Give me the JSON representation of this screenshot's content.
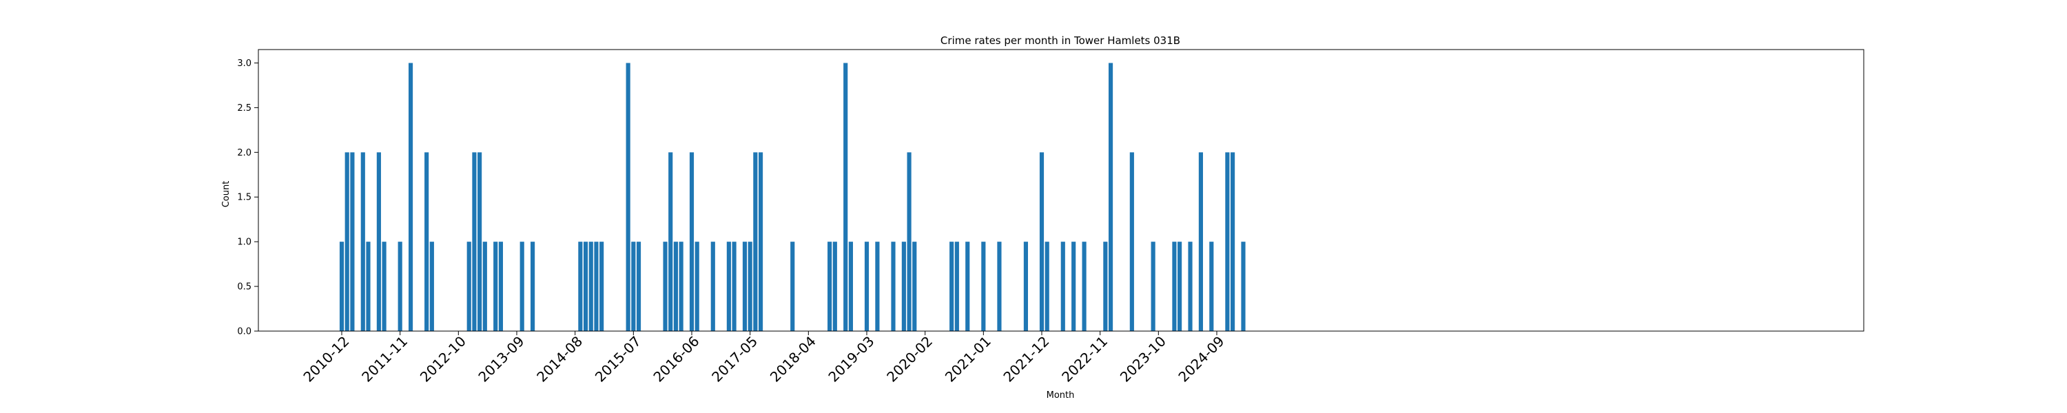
{
  "chart_data": {
    "type": "bar",
    "title": "Crime rates per month in Tower Hamlets 031B",
    "xlabel": "Month",
    "ylabel": "Count",
    "ylim": [
      0,
      3.15
    ],
    "yticks": [
      "0.0",
      "0.5",
      "1.0",
      "1.5",
      "2.0",
      "2.5",
      "3.0"
    ],
    "xtick_labels": [
      "2010-12",
      "2011-11",
      "2012-10",
      "2013-09",
      "2014-08",
      "2015-07",
      "2016-06",
      "2017-05",
      "2018-04",
      "2019-03",
      "2020-02",
      "2021-01",
      "2021-12",
      "2022-11",
      "2023-10",
      "2024-09"
    ],
    "grid": false,
    "bar_color": "#1f77b4",
    "bars": [
      {
        "x": "2010-12",
        "y": 1
      },
      {
        "x": "2011-01",
        "y": 2
      },
      {
        "x": "2011-02",
        "y": 2
      },
      {
        "x": "2011-04",
        "y": 2
      },
      {
        "x": "2011-05",
        "y": 1
      },
      {
        "x": "2011-07",
        "y": 2
      },
      {
        "x": "2011-08",
        "y": 1
      },
      {
        "x": "2011-11",
        "y": 1
      },
      {
        "x": "2012-01",
        "y": 3
      },
      {
        "x": "2012-04",
        "y": 2
      },
      {
        "x": "2012-05",
        "y": 1
      },
      {
        "x": "2012-12",
        "y": 1
      },
      {
        "x": "2013-01",
        "y": 2
      },
      {
        "x": "2013-02",
        "y": 2
      },
      {
        "x": "2013-03",
        "y": 1
      },
      {
        "x": "2013-05",
        "y": 1
      },
      {
        "x": "2013-06",
        "y": 1
      },
      {
        "x": "2013-10",
        "y": 1
      },
      {
        "x": "2013-12",
        "y": 1
      },
      {
        "x": "2014-09",
        "y": 1
      },
      {
        "x": "2014-10",
        "y": 1
      },
      {
        "x": "2014-11",
        "y": 1
      },
      {
        "x": "2014-12",
        "y": 1
      },
      {
        "x": "2015-01",
        "y": 1
      },
      {
        "x": "2015-06",
        "y": 3
      },
      {
        "x": "2015-07",
        "y": 1
      },
      {
        "x": "2015-08",
        "y": 1
      },
      {
        "x": "2016-01",
        "y": 1
      },
      {
        "x": "2016-02",
        "y": 2
      },
      {
        "x": "2016-03",
        "y": 1
      },
      {
        "x": "2016-04",
        "y": 1
      },
      {
        "x": "2016-06",
        "y": 2
      },
      {
        "x": "2016-07",
        "y": 1
      },
      {
        "x": "2016-10",
        "y": 1
      },
      {
        "x": "2017-01",
        "y": 1
      },
      {
        "x": "2017-02",
        "y": 1
      },
      {
        "x": "2017-04",
        "y": 1
      },
      {
        "x": "2017-05",
        "y": 1
      },
      {
        "x": "2017-06",
        "y": 2
      },
      {
        "x": "2017-07",
        "y": 2
      },
      {
        "x": "2018-01",
        "y": 1
      },
      {
        "x": "2018-08",
        "y": 1
      },
      {
        "x": "2018-09",
        "y": 1
      },
      {
        "x": "2018-11",
        "y": 3
      },
      {
        "x": "2018-12",
        "y": 1
      },
      {
        "x": "2019-03",
        "y": 1
      },
      {
        "x": "2019-05",
        "y": 1
      },
      {
        "x": "2019-08",
        "y": 1
      },
      {
        "x": "2019-10",
        "y": 1
      },
      {
        "x": "2019-11",
        "y": 2
      },
      {
        "x": "2019-12",
        "y": 1
      },
      {
        "x": "2020-07",
        "y": 1
      },
      {
        "x": "2020-08",
        "y": 1
      },
      {
        "x": "2020-10",
        "y": 1
      },
      {
        "x": "2021-01",
        "y": 1
      },
      {
        "x": "2021-04",
        "y": 1
      },
      {
        "x": "2021-09",
        "y": 1
      },
      {
        "x": "2021-12",
        "y": 2
      },
      {
        "x": "2022-01",
        "y": 1
      },
      {
        "x": "2022-04",
        "y": 1
      },
      {
        "x": "2022-06",
        "y": 1
      },
      {
        "x": "2022-08",
        "y": 1
      },
      {
        "x": "2022-12",
        "y": 1
      },
      {
        "x": "2023-01",
        "y": 3
      },
      {
        "x": "2023-05",
        "y": 2
      },
      {
        "x": "2023-09",
        "y": 1
      },
      {
        "x": "2024-01",
        "y": 1
      },
      {
        "x": "2024-02",
        "y": 1
      },
      {
        "x": "2024-04",
        "y": 1
      },
      {
        "x": "2024-06",
        "y": 2
      },
      {
        "x": "2024-08",
        "y": 1
      },
      {
        "x": "2024-11",
        "y": 2
      },
      {
        "x": "2024-12",
        "y": 2
      },
      {
        "x": "2025-02",
        "y": 1
      }
    ]
  }
}
